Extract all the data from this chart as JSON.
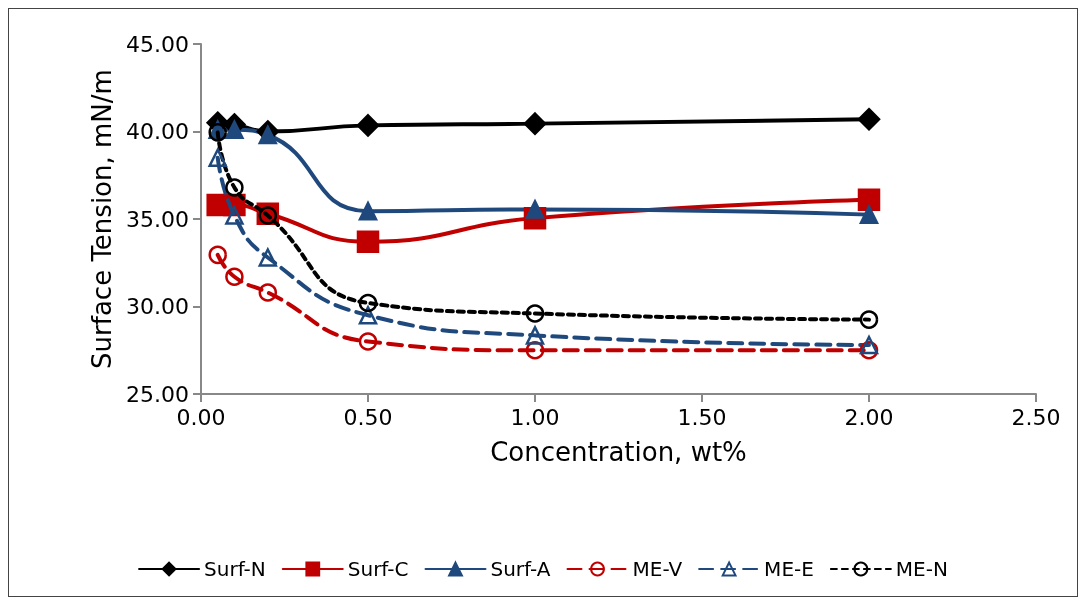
{
  "chart_data": {
    "type": "line",
    "xlabel": "Concentration, wt%",
    "ylabel": "Surface Tension, mN/m",
    "x": [
      0.05,
      0.1,
      0.2,
      0.5,
      1.0,
      2.0
    ],
    "xlim": [
      0,
      2.5
    ],
    "xticks": [
      {
        "value": 0,
        "label": "0.00"
      },
      {
        "value": 0.5,
        "label": "0.50"
      },
      {
        "value": 1,
        "label": "1.00"
      },
      {
        "value": 1.5,
        "label": "1.50"
      },
      {
        "value": 2,
        "label": "2.00"
      },
      {
        "value": 2.5,
        "label": "2.50"
      }
    ],
    "ylim": [
      25,
      45
    ],
    "yticks": [
      {
        "value": 25,
        "label": "25.00"
      },
      {
        "value": 30,
        "label": "30.00"
      },
      {
        "value": 35,
        "label": "35.00"
      },
      {
        "value": 40,
        "label": "40.00"
      },
      {
        "value": 45,
        "label": "45.00"
      }
    ],
    "grid": false,
    "legend": "bottom",
    "series": [
      {
        "name": "Surf-N",
        "color": "#000000",
        "marker": "diamond",
        "line_style": "solid",
        "values": [
          40.5,
          40.4,
          40.0,
          40.35,
          40.45,
          40.7
        ]
      },
      {
        "name": "Surf-C",
        "color": "#c00000",
        "marker": "square",
        "line_style": "solid",
        "values": [
          35.8,
          35.8,
          35.3,
          33.7,
          35.05,
          36.1
        ]
      },
      {
        "name": "Surf-A",
        "color": "#1f497d",
        "marker": "triangle",
        "line_style": "solid",
        "values": [
          40.1,
          40.1,
          39.8,
          35.45,
          35.55,
          35.25
        ]
      },
      {
        "name": "ME-V",
        "color": "#c00000",
        "marker": "circle",
        "line_style": "dashed",
        "values": [
          32.95,
          31.7,
          30.8,
          28.0,
          27.5,
          27.5
        ]
      },
      {
        "name": "ME-E",
        "color": "#1f497d",
        "marker": "triangle",
        "line_style": "dashed",
        "values": [
          38.5,
          35.2,
          32.8,
          29.5,
          28.35,
          27.8
        ]
      },
      {
        "name": "ME-N",
        "color": "#000000",
        "marker": "circle",
        "line_style": "dotted",
        "values": [
          39.95,
          36.8,
          35.2,
          30.2,
          29.6,
          29.25
        ]
      }
    ]
  }
}
